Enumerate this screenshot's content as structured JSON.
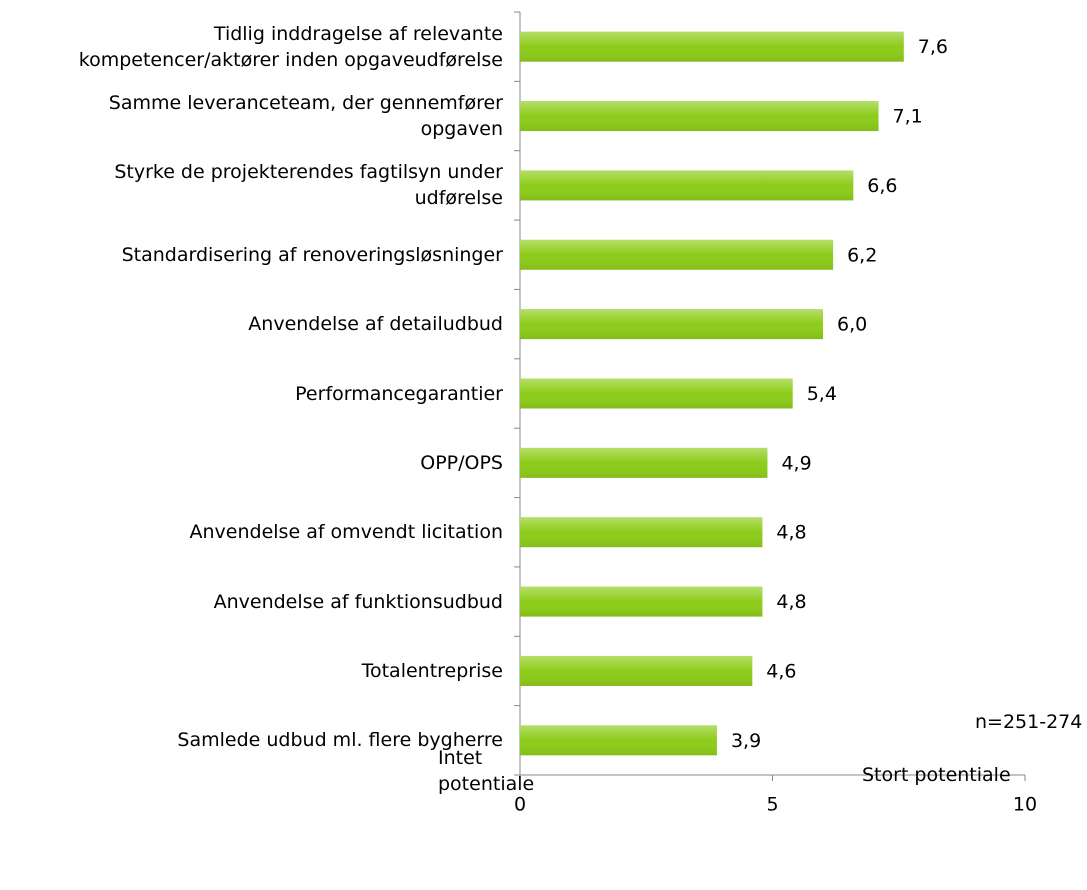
{
  "chart_data": {
    "type": "bar",
    "orientation": "horizontal",
    "categories": [
      "Tidlig inddragelse af relevante\nkompetencer/aktører inden opgaveudførelse",
      "Samme leveranceteam, der gennemfører\nopgaven",
      "Styrke de projekterendes fagtilsyn under\nudførelse",
      "Standardisering af renoveringsløsninger",
      "Anvendelse af detailudbud",
      "Performancegarantier",
      "OPP/OPS",
      "Anvendelse af omvendt licitation",
      "Anvendelse af funktionsudbud",
      "Totalentreprise",
      "Samlede udbud ml. flere bygherre"
    ],
    "values": [
      7.6,
      7.1,
      6.6,
      6.2,
      6.0,
      5.4,
      4.9,
      4.8,
      4.8,
      4.6,
      3.9
    ],
    "value_labels": [
      "7,6",
      "7,1",
      "6,6",
      "6,2",
      "6,0",
      "5,4",
      "4,9",
      "4,8",
      "4,8",
      "4,6",
      "3,9"
    ],
    "color": "#8dcc1a",
    "xlim": [
      0,
      10
    ],
    "xticks": [
      0,
      5,
      10
    ],
    "x_label_left": "Intet\npotentiale",
    "x_label_right": "Stort potentiale",
    "annotation": "n=251-274"
  }
}
